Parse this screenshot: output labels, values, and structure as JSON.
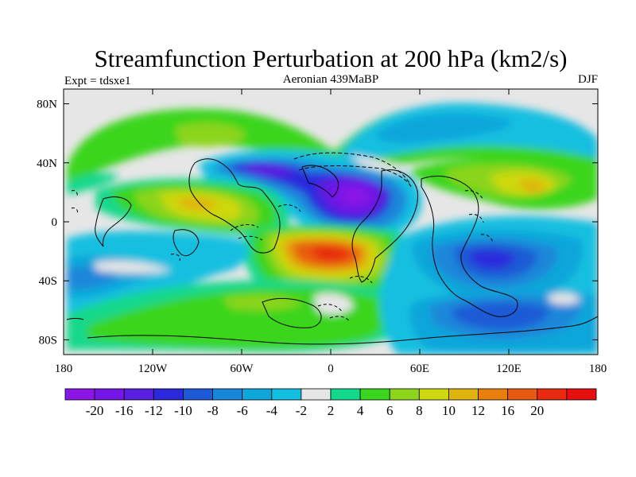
{
  "chart_data": {
    "type": "contour-map",
    "title": "Streamfunction Perturbation at 200 hPa (km2/s)",
    "left_string": "Expt = tdsxe1",
    "center_string": "Aeronian 439MaBP",
    "right_string": "DJF",
    "x_ticks": [
      "180",
      "120W",
      "60W",
      "0",
      "60E",
      "120E",
      "180"
    ],
    "x_tick_values": [
      -180,
      -120,
      -60,
      0,
      60,
      120,
      180
    ],
    "y_ticks": [
      "80N",
      "40N",
      "0",
      "40S",
      "80S"
    ],
    "y_tick_values": [
      80,
      40,
      0,
      -40,
      -80
    ],
    "xlim": [
      -180,
      180
    ],
    "ylim": [
      -90,
      90
    ],
    "colorbar": {
      "labels": [
        "-20",
        "-16",
        "-12",
        "-10",
        "-8",
        "-6",
        "-4",
        "-2",
        "2",
        "4",
        "6",
        "8",
        "10",
        "12",
        "16",
        "20"
      ],
      "levels": [
        -20,
        -16,
        -12,
        -10,
        -8,
        -6,
        -4,
        -2,
        2,
        4,
        6,
        8,
        10,
        12,
        16,
        20
      ],
      "colors": [
        "#8a17e6",
        "#7417e6",
        "#5a1ee0",
        "#2a2adc",
        "#1f5ad6",
        "#1a86d9",
        "#0fa6da",
        "#13bfe0",
        "#e6e6e6",
        "#12d88c",
        "#3ad51f",
        "#8bd51a",
        "#cdd80f",
        "#e0b40f",
        "#e87f0c",
        "#e85a10",
        "#e82a10",
        "#e60f0f"
      ]
    },
    "field_blobs": [
      {
        "lon": -40,
        "lat": 55,
        "value": 6
      },
      {
        "lon": -60,
        "lat": 38,
        "value": -10
      },
      {
        "lon": 15,
        "lat": 15,
        "value": -20
      },
      {
        "lon": -90,
        "lat": 10,
        "value": 10
      },
      {
        "lon": 0,
        "lat": -22,
        "value": 16
      },
      {
        "lon": 130,
        "lat": 28,
        "value": 10
      },
      {
        "lon": 105,
        "lat": -25,
        "value": -12
      },
      {
        "lon": 115,
        "lat": -62,
        "value": -8
      },
      {
        "lon": -160,
        "lat": -40,
        "value": -4
      },
      {
        "lon": -15,
        "lat": -55,
        "value": 6
      }
    ]
  }
}
